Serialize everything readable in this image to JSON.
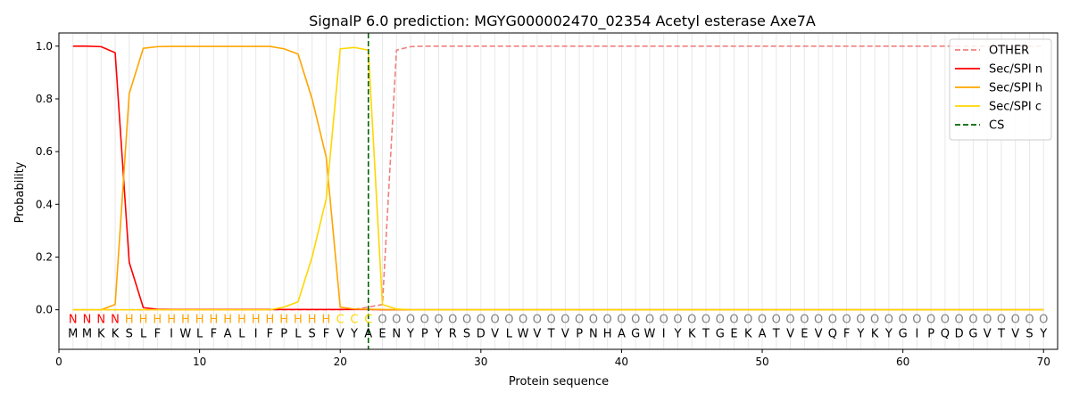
{
  "chart_data": {
    "type": "line",
    "title": "SignalP 6.0 prediction: MGYG000002470_02354 Acetyl esterase Axe7A",
    "xlabel": "Protein sequence",
    "ylabel": "Probability",
    "xlim": [
      0,
      71
    ],
    "ylim": [
      -0.15,
      1.05
    ],
    "xticks": [
      0,
      10,
      20,
      30,
      40,
      50,
      60,
      70
    ],
    "yticks": [
      0.0,
      0.2,
      0.4,
      0.6,
      0.8,
      1.0
    ],
    "ytick_labels": [
      "0.0",
      "0.2",
      "0.4",
      "0.6",
      "0.8",
      "1.0"
    ],
    "grid": "vertical lines at each residue",
    "legend_position": "top-right",
    "sequence": "MMKKSLFIWLFALIFPLSFVYAENYPYRSDVLWVTVPNHAGWIYKTGEKATVEVQFYKYGIPQDGVTVSY",
    "labels": "NNNNHHHHHHHHHHHHHHHCCCOOOOOOOOOOOOOOOOOOOOOOOOOOOOOOOOOOOOOOOOOOOOOOOO",
    "label_colors": {
      "N": "#ff0000",
      "H": "#ffa500",
      "C": "#ffd700",
      "O": "#808080"
    },
    "cleavage_site": 22,
    "series": [
      {
        "name": "OTHER",
        "color": "#f08080",
        "dash": "dashed",
        "values": [
          0,
          0,
          0,
          0,
          0,
          0,
          0,
          0,
          0,
          0,
          0,
          0,
          0,
          0,
          0,
          0,
          0,
          0,
          0,
          0,
          0.002,
          0.01,
          0.02,
          0.985,
          0.998,
          1,
          1,
          1,
          1,
          1,
          1,
          1,
          1,
          1,
          1,
          1,
          1,
          1,
          1,
          1,
          1,
          1,
          1,
          1,
          1,
          1,
          1,
          1,
          1,
          1,
          1,
          1,
          1,
          1,
          1,
          1,
          1,
          1,
          1,
          1,
          1,
          1,
          1,
          1,
          1,
          1,
          1,
          1,
          1,
          1
        ]
      },
      {
        "name": "Sec/SPI n",
        "color": "#ff0000",
        "dash": "solid",
        "values": [
          1.0,
          1.0,
          0.998,
          0.975,
          0.18,
          0.008,
          0.002,
          0.001,
          0.001,
          0.001,
          0.001,
          0.001,
          0.001,
          0.001,
          0.001,
          0.001,
          0.001,
          0.001,
          0.001,
          0.001,
          0.001,
          0.001,
          0,
          0,
          0,
          0,
          0,
          0,
          0,
          0,
          0,
          0,
          0,
          0,
          0,
          0,
          0,
          0,
          0,
          0,
          0,
          0,
          0,
          0,
          0,
          0,
          0,
          0,
          0,
          0,
          0,
          0,
          0,
          0,
          0,
          0,
          0,
          0,
          0,
          0,
          0,
          0,
          0,
          0,
          0,
          0,
          0,
          0,
          0,
          0
        ]
      },
      {
        "name": "Sec/SPI h",
        "color": "#ffa500",
        "dash": "solid",
        "values": [
          0,
          0,
          0,
          0.02,
          0.82,
          0.992,
          0.998,
          0.999,
          0.999,
          0.999,
          0.999,
          0.999,
          0.999,
          0.999,
          0.999,
          0.99,
          0.97,
          0.8,
          0.58,
          0.01,
          0.003,
          0.002,
          0.001,
          0,
          0,
          0,
          0,
          0,
          0,
          0,
          0,
          0,
          0,
          0,
          0,
          0,
          0,
          0,
          0,
          0,
          0,
          0,
          0,
          0,
          0,
          0,
          0,
          0,
          0,
          0,
          0,
          0,
          0,
          0,
          0,
          0,
          0,
          0,
          0,
          0,
          0,
          0,
          0,
          0,
          0,
          0,
          0,
          0,
          0,
          0
        ]
      },
      {
        "name": "Sec/SPI c",
        "color": "#ffd700",
        "dash": "solid",
        "values": [
          0,
          0,
          0,
          0,
          0,
          0,
          0,
          0,
          0,
          0,
          0,
          0,
          0,
          0,
          0,
          0.01,
          0.03,
          0.2,
          0.42,
          0.99,
          0.995,
          0.985,
          0.02,
          0.003,
          0,
          0,
          0,
          0,
          0,
          0,
          0,
          0,
          0,
          0,
          0,
          0,
          0,
          0,
          0,
          0,
          0,
          0,
          0,
          0,
          0,
          0,
          0,
          0,
          0,
          0,
          0,
          0,
          0,
          0,
          0,
          0,
          0,
          0,
          0,
          0,
          0,
          0,
          0,
          0,
          0,
          0,
          0,
          0,
          0,
          0
        ]
      }
    ],
    "cs_legend": {
      "name": "CS",
      "color": "#006400",
      "dash": "dashed"
    }
  }
}
